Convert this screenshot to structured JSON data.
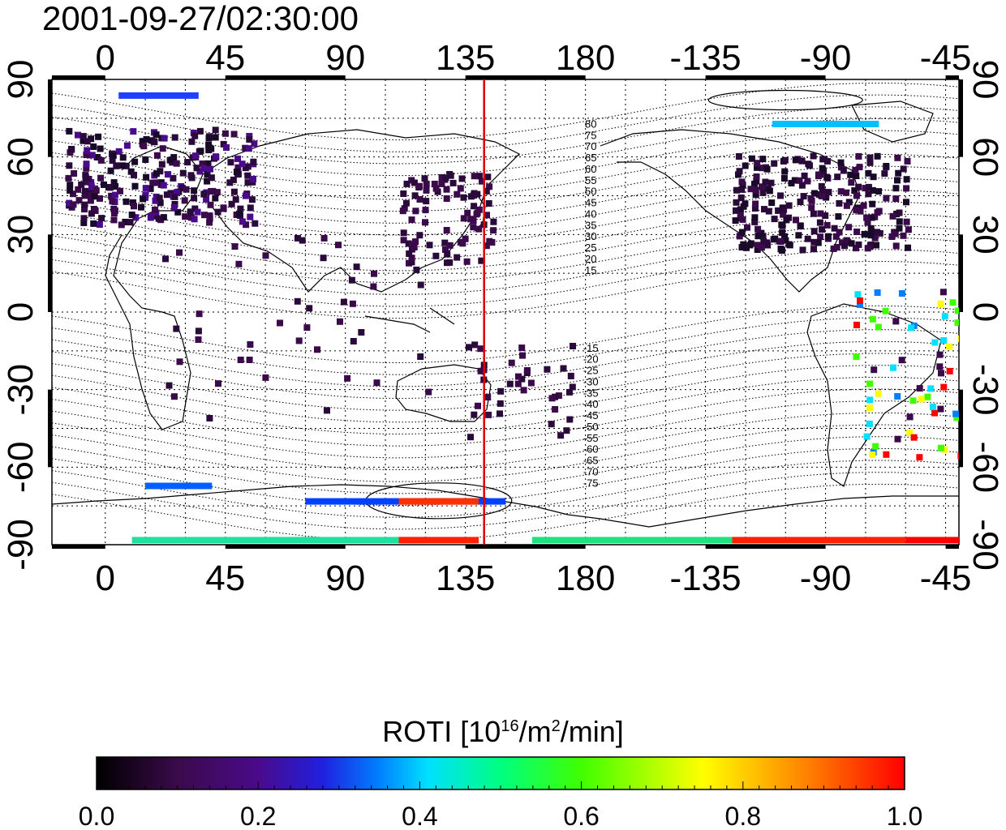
{
  "timestamp": "2001-09-27/02:30:00",
  "map": {
    "top_lon_ticks": [
      "0",
      "45",
      "90",
      "135",
      "180",
      "-135",
      "-90",
      "-45"
    ],
    "bottom_lon_ticks": [
      "0",
      "45",
      "90",
      "135",
      "180",
      "-135",
      "-90",
      "-45"
    ],
    "left_lat_ticks": [
      "90",
      "60",
      "30",
      "0",
      "-30",
      "-60",
      "-90"
    ],
    "right_lat_ticks": [
      "90",
      "60",
      "30",
      "0",
      "-30",
      "-60",
      "-90"
    ],
    "longitude_range": [
      -20,
      320
    ],
    "latitude_range": [
      -90,
      90
    ],
    "grid": true,
    "meridian_marker_lon": 142,
    "meridian_marker_color": "#e00000",
    "mlat_labels_north": [
      "80",
      "75",
      "70",
      "65",
      "60",
      "55",
      "50",
      "45",
      "40",
      "35",
      "30",
      "25",
      "20",
      "15"
    ],
    "mlat_labels_south": [
      "-15",
      "-20",
      "-25",
      "-30",
      "-35",
      "-40",
      "-45",
      "-50",
      "-55",
      "-60",
      "-65",
      "-70",
      "-75"
    ]
  },
  "colorbar": {
    "label_prefix": "ROTI  [10",
    "label_exp1": "16",
    "label_mid": "/m",
    "label_exp2": "2",
    "label_suffix": "/min]",
    "ticks": [
      "0.0",
      "0.2",
      "0.4",
      "0.6",
      "0.8",
      "1.0"
    ],
    "range": [
      0.0,
      1.0
    ],
    "colormap": [
      "#000000",
      "#3a0a4a",
      "#4a0a8a",
      "#2020e0",
      "#0080ff",
      "#00e0ff",
      "#00ff80",
      "#40ff00",
      "#ffff00",
      "#ff8000",
      "#ff0000"
    ]
  }
}
